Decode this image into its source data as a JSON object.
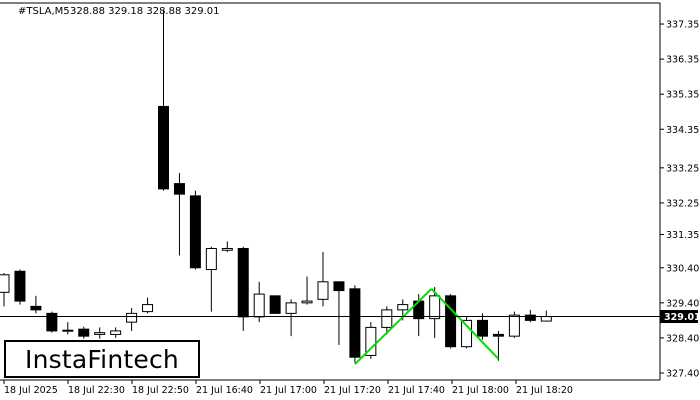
{
  "header": {
    "symbol_timeframe": "#TSLA,M5",
    "ohlc": "328.88 329.18 328.88 329.01"
  },
  "logo": {
    "text": "InstaFintech"
  },
  "current_price_label": "329.01",
  "colors": {
    "bull_fill": "#ffffff",
    "bear_fill": "#000000",
    "candle_outline": "#000000",
    "pattern_line": "#00dd00",
    "price_tag_bg": "#000000",
    "axis": "#000000"
  },
  "chart_data": {
    "type": "candlestick",
    "title": "#TSLA,M5",
    "pattern": "double top",
    "ylim": [
      327.4,
      338
    ],
    "y_ticks": [
      "337.35",
      "336.35",
      "335.35",
      "334.35",
      "333.25",
      "332.25",
      "331.35",
      "330.40",
      "329.40",
      "328.40",
      "327.40"
    ],
    "x_ticks": [
      "18 Jul 2025",
      "18 Jul 22:30",
      "18 Jul 22:50",
      "21 Jul 16:40",
      "21 Jul 17:00",
      "21 Jul 17:20",
      "21 Jul 17:40",
      "21 Jul 18:00",
      "21 Jul 18:20"
    ],
    "current_price": 329.01,
    "candles": [
      {
        "o": 329.7,
        "h": 330.25,
        "l": 329.3,
        "c": 330.2
      },
      {
        "o": 330.3,
        "h": 330.35,
        "l": 329.35,
        "c": 329.45
      },
      {
        "o": 329.3,
        "h": 329.6,
        "l": 329.1,
        "c": 329.2
      },
      {
        "o": 329.1,
        "h": 329.15,
        "l": 328.55,
        "c": 328.6
      },
      {
        "o": 328.6,
        "h": 328.85,
        "l": 328.5,
        "c": 328.62
      },
      {
        "o": 328.65,
        "h": 328.72,
        "l": 328.38,
        "c": 328.45
      },
      {
        "o": 328.5,
        "h": 328.7,
        "l": 328.38,
        "c": 328.55
      },
      {
        "o": 328.5,
        "h": 328.7,
        "l": 328.4,
        "c": 328.6
      },
      {
        "o": 328.85,
        "h": 329.25,
        "l": 328.6,
        "c": 329.1
      },
      {
        "o": 329.15,
        "h": 329.55,
        "l": 329.1,
        "c": 329.35
      },
      {
        "o": 335.0,
        "h": 337.75,
        "l": 332.6,
        "c": 332.65
      },
      {
        "o": 332.8,
        "h": 333.1,
        "l": 330.75,
        "c": 332.5
      },
      {
        "o": 332.45,
        "h": 332.6,
        "l": 330.35,
        "c": 330.4
      },
      {
        "o": 330.35,
        "h": 331.0,
        "l": 329.15,
        "c": 330.95
      },
      {
        "o": 330.9,
        "h": 331.15,
        "l": 330.85,
        "c": 330.95
      },
      {
        "o": 330.95,
        "h": 331.0,
        "l": 328.6,
        "c": 329.0
      },
      {
        "o": 329.0,
        "h": 330.0,
        "l": 328.85,
        "c": 329.65
      },
      {
        "o": 329.6,
        "h": 329.6,
        "l": 329.1,
        "c": 329.1
      },
      {
        "o": 329.1,
        "h": 329.5,
        "l": 328.45,
        "c": 329.4
      },
      {
        "o": 329.4,
        "h": 330.15,
        "l": 329.35,
        "c": 329.45
      },
      {
        "o": 329.5,
        "h": 330.85,
        "l": 329.3,
        "c": 330.0
      },
      {
        "o": 330.0,
        "h": 330.0,
        "l": 328.2,
        "c": 329.75
      },
      {
        "o": 329.8,
        "h": 329.9,
        "l": 327.7,
        "c": 327.85
      },
      {
        "o": 327.9,
        "h": 328.85,
        "l": 327.8,
        "c": 328.7
      },
      {
        "o": 328.7,
        "h": 329.3,
        "l": 328.5,
        "c": 329.2
      },
      {
        "o": 329.2,
        "h": 329.5,
        "l": 328.9,
        "c": 329.35
      },
      {
        "o": 329.45,
        "h": 329.65,
        "l": 328.45,
        "c": 328.95
      },
      {
        "o": 328.95,
        "h": 329.85,
        "l": 328.4,
        "c": 329.6
      },
      {
        "o": 329.6,
        "h": 329.65,
        "l": 328.1,
        "c": 328.15
      },
      {
        "o": 328.15,
        "h": 329.0,
        "l": 328.1,
        "c": 328.9
      },
      {
        "o": 328.9,
        "h": 329.1,
        "l": 328.35,
        "c": 328.45
      },
      {
        "o": 328.5,
        "h": 328.6,
        "l": 327.75,
        "c": 328.45
      },
      {
        "o": 328.45,
        "h": 329.15,
        "l": 328.4,
        "c": 329.05
      },
      {
        "o": 329.05,
        "h": 329.2,
        "l": 328.85,
        "c": 328.9
      },
      {
        "o": 328.88,
        "h": 329.18,
        "l": 328.88,
        "c": 329.01
      }
    ],
    "pattern_points": [
      {
        "i": 22,
        "price": 327.65
      },
      {
        "i": 26.8,
        "price": 329.8
      },
      {
        "i": 31,
        "price": 327.8
      }
    ]
  }
}
